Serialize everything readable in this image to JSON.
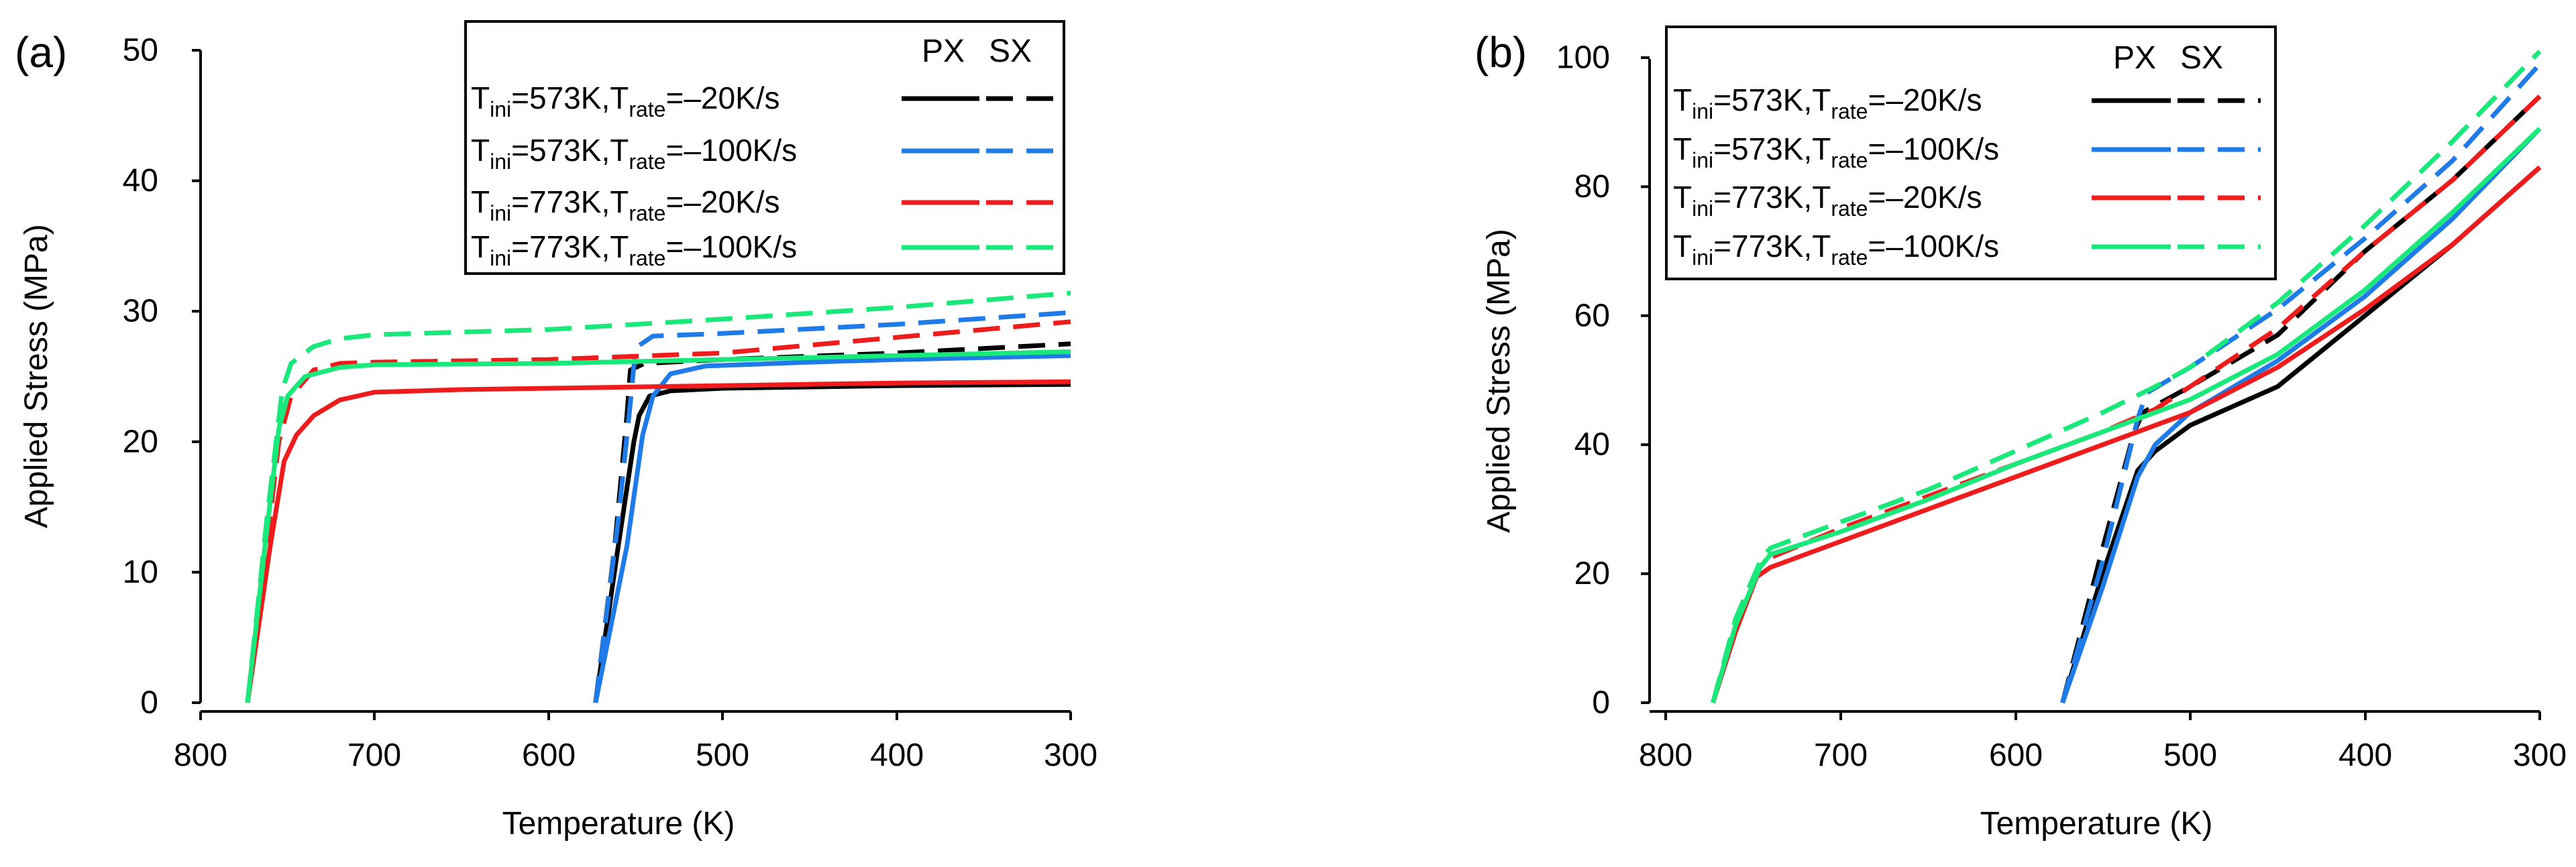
{
  "chart_data": [
    {
      "type": "line",
      "panel_label": "(a)",
      "xlabel": "Temperature (K)",
      "ylabel": "Applied Stress (MPa)",
      "xlim": [
        810,
        300
      ],
      "ylim": [
        0,
        50
      ],
      "x_ticks": [
        800,
        700,
        600,
        500,
        400,
        300
      ],
      "y_ticks": [
        0,
        10,
        20,
        30,
        40,
        50
      ],
      "legend": {
        "position": "top-right",
        "col_px": "PX",
        "col_sx": "SX",
        "entries": [
          {
            "t_ini": "573K",
            "t_rate": "–20K/s",
            "color": "#000000"
          },
          {
            "t_ini": "573K",
            "t_rate": "–100K/s",
            "color": "#1e7be8"
          },
          {
            "t_ini": "773K",
            "t_rate": "–20K/s",
            "color": "#ee1c1c"
          },
          {
            "t_ini": "773K",
            "t_rate": "–100K/s",
            "color": "#19e87a"
          }
        ]
      },
      "series": [
        {
          "name": "Tini=573K,Trate=–20K/s PX",
          "color": "#000000",
          "dash": false,
          "points": [
            [
              573,
              0
            ],
            [
              560,
              12
            ],
            [
              551,
              20
            ],
            [
              548,
              22
            ],
            [
              542,
              23.5
            ],
            [
              530,
              23.9
            ],
            [
              500,
              24.1
            ],
            [
              400,
              24.3
            ],
            [
              300,
              24.4
            ]
          ]
        },
        {
          "name": "Tini=573K,Trate=–20K/s SX",
          "color": "#000000",
          "dash": true,
          "points": [
            [
              573,
              0
            ],
            [
              562,
              12
            ],
            [
              555,
              22
            ],
            [
              553,
              25.5
            ],
            [
              545,
              26
            ],
            [
              500,
              26.3
            ],
            [
              400,
              26.8
            ],
            [
              300,
              27.5
            ]
          ]
        },
        {
          "name": "Tini=573K,Trate=–100K/s PX",
          "color": "#1e7be8",
          "dash": false,
          "points": [
            [
              573,
              0
            ],
            [
              555,
              12
            ],
            [
              546,
              20.5
            ],
            [
              540,
              23.5
            ],
            [
              530,
              25.2
            ],
            [
              510,
              25.8
            ],
            [
              450,
              26.1
            ],
            [
              400,
              26.3
            ],
            [
              300,
              26.6
            ]
          ]
        },
        {
          "name": "Tini=573K,Trate=–100K/s SX",
          "color": "#1e7be8",
          "dash": true,
          "points": [
            [
              573,
              0
            ],
            [
              560,
              14
            ],
            [
              553,
              23
            ],
            [
              550,
              27.2
            ],
            [
              540,
              28.1
            ],
            [
              500,
              28.3
            ],
            [
              400,
              29
            ],
            [
              300,
              29.9
            ]
          ]
        },
        {
          "name": "Tini=773K,Trate=–20K/s PX",
          "color": "#ee1c1c",
          "dash": false,
          "points": [
            [
              773,
              0
            ],
            [
              760,
              12
            ],
            [
              752,
              18.5
            ],
            [
              745,
              20.5
            ],
            [
              735,
              22
            ],
            [
              720,
              23.2
            ],
            [
              700,
              23.8
            ],
            [
              650,
              24
            ],
            [
              500,
              24.3
            ],
            [
              400,
              24.5
            ],
            [
              300,
              24.6
            ]
          ]
        },
        {
          "name": "Tini=773K,Trate=–20K/s SX",
          "color": "#ee1c1c",
          "dash": true,
          "points": [
            [
              773,
              0
            ],
            [
              762,
              12
            ],
            [
              755,
              20
            ],
            [
              748,
              23.5
            ],
            [
              735,
              25.5
            ],
            [
              720,
              26
            ],
            [
              700,
              26.1
            ],
            [
              600,
              26.3
            ],
            [
              500,
              26.8
            ],
            [
              400,
              28
            ],
            [
              300,
              29.2
            ]
          ]
        },
        {
          "name": "Tini=773K,Trate=–100K/s PX",
          "color": "#19e87a",
          "dash": false,
          "points": [
            [
              773,
              0
            ],
            [
              763,
              12
            ],
            [
              755,
              21
            ],
            [
              750,
              23.5
            ],
            [
              740,
              25
            ],
            [
              720,
              25.7
            ],
            [
              700,
              25.9
            ],
            [
              600,
              26
            ],
            [
              500,
              26.3
            ],
            [
              400,
              26.6
            ],
            [
              300,
              26.9
            ]
          ]
        },
        {
          "name": "Tini=773K,Trate=–100K/s SX",
          "color": "#19e87a",
          "dash": true,
          "points": [
            [
              773,
              0
            ],
            [
              762,
              14
            ],
            [
              753,
              24
            ],
            [
              748,
              26
            ],
            [
              735,
              27.3
            ],
            [
              720,
              27.9
            ],
            [
              700,
              28.2
            ],
            [
              600,
              28.6
            ],
            [
              500,
              29.4
            ],
            [
              400,
              30.3
            ],
            [
              300,
              31.4
            ]
          ]
        }
      ]
    },
    {
      "type": "line",
      "panel_label": "(b)",
      "xlabel": "Temperature (K)",
      "ylabel": "Applied Stress (MPa)",
      "xlim": [
        810,
        300
      ],
      "ylim": [
        0,
        100
      ],
      "x_ticks": [
        800,
        700,
        600,
        500,
        400,
        300
      ],
      "y_ticks": [
        0,
        20,
        40,
        60,
        80,
        100
      ],
      "legend": {
        "position": "top-left",
        "col_px": "PX",
        "col_sx": "SX",
        "entries": [
          {
            "t_ini": "573K",
            "t_rate": "–20K/s",
            "color": "#000000"
          },
          {
            "t_ini": "573K",
            "t_rate": "–100K/s",
            "color": "#1e7be8"
          },
          {
            "t_ini": "773K",
            "t_rate": "–20K/s",
            "color": "#ee1c1c"
          },
          {
            "t_ini": "773K",
            "t_rate": "–100K/s",
            "color": "#19e87a"
          }
        ]
      },
      "series": [
        {
          "name": "Tini=573K,Trate=–20K/s PX",
          "color": "#000000",
          "dash": false,
          "points": [
            [
              573,
              0
            ],
            [
              550,
              20
            ],
            [
              530,
              36
            ],
            [
              520,
              39
            ],
            [
              500,
              43
            ],
            [
              450,
              49
            ],
            [
              400,
              60
            ],
            [
              350,
              71
            ],
            [
              300,
              83
            ]
          ]
        },
        {
          "name": "Tini=573K,Trate=–20K/s SX",
          "color": "#000000",
          "dash": true,
          "points": [
            [
              573,
              0
            ],
            [
              550,
              24
            ],
            [
              532,
              42
            ],
            [
              527,
              45
            ],
            [
              500,
              49
            ],
            [
              450,
              57
            ],
            [
              400,
              70
            ],
            [
              350,
              81
            ],
            [
              300,
              94
            ]
          ]
        },
        {
          "name": "Tini=573K,Trate=–100K/s PX",
          "color": "#1e7be8",
          "dash": false,
          "points": [
            [
              573,
              0
            ],
            [
              550,
              18
            ],
            [
              530,
              35
            ],
            [
              520,
              40
            ],
            [
              500,
              45
            ],
            [
              450,
              53
            ],
            [
              400,
              63
            ],
            [
              350,
              75
            ],
            [
              300,
              89
            ]
          ]
        },
        {
          "name": "Tini=573K,Trate=–100K/s SX",
          "color": "#1e7be8",
          "dash": true,
          "points": [
            [
              573,
              0
            ],
            [
              550,
              22
            ],
            [
              530,
              44
            ],
            [
              525,
              48
            ],
            [
              500,
              52
            ],
            [
              450,
              61
            ],
            [
              400,
              72
            ],
            [
              350,
              84
            ],
            [
              300,
              99
            ]
          ]
        },
        {
          "name": "Tini=773K,Trate=–20K/s PX",
          "color": "#ee1c1c",
          "dash": false,
          "points": [
            [
              773,
              0
            ],
            [
              760,
              11
            ],
            [
              748,
              19.5
            ],
            [
              740,
              21
            ],
            [
              700,
              25
            ],
            [
              650,
              30
            ],
            [
              600,
              35
            ],
            [
              550,
              40
            ],
            [
              520,
              43
            ],
            [
              500,
              45
            ],
            [
              450,
              52
            ],
            [
              400,
              61
            ],
            [
              350,
              71
            ],
            [
              300,
              83
            ]
          ]
        },
        {
          "name": "Tini=773K,Trate=–20K/s SX",
          "color": "#ee1c1c",
          "dash": true,
          "points": [
            [
              773,
              0
            ],
            [
              760,
              12
            ],
            [
              747,
              21
            ],
            [
              740,
              22.5
            ],
            [
              700,
              27
            ],
            [
              650,
              32
            ],
            [
              600,
              37
            ],
            [
              550,
              42
            ],
            [
              520,
              45.5
            ],
            [
              500,
              49
            ],
            [
              450,
              58
            ],
            [
              400,
              70
            ],
            [
              350,
              81
            ],
            [
              300,
              94
            ]
          ]
        },
        {
          "name": "Tini=773K,Trate=–100K/s PX",
          "color": "#19e87a",
          "dash": false,
          "points": [
            [
              773,
              0
            ],
            [
              760,
              12
            ],
            [
              746,
              21
            ],
            [
              740,
              23
            ],
            [
              700,
              26.5
            ],
            [
              650,
              31.5
            ],
            [
              600,
              37
            ],
            [
              550,
              42
            ],
            [
              520,
              45
            ],
            [
              500,
              47
            ],
            [
              450,
              54
            ],
            [
              400,
              64
            ],
            [
              350,
              76
            ],
            [
              300,
              89
            ]
          ]
        },
        {
          "name": "Tini=773K,Trate=–100K/s SX",
          "color": "#19e87a",
          "dash": true,
          "points": [
            [
              773,
              0
            ],
            [
              760,
              13
            ],
            [
              745,
              22.5
            ],
            [
              740,
              24
            ],
            [
              700,
              28
            ],
            [
              650,
              33
            ],
            [
              600,
              39
            ],
            [
              550,
              45
            ],
            [
              520,
              49
            ],
            [
              500,
              52
            ],
            [
              450,
              62
            ],
            [
              400,
              74
            ],
            [
              350,
              87
            ],
            [
              300,
              101
            ]
          ]
        }
      ]
    }
  ]
}
